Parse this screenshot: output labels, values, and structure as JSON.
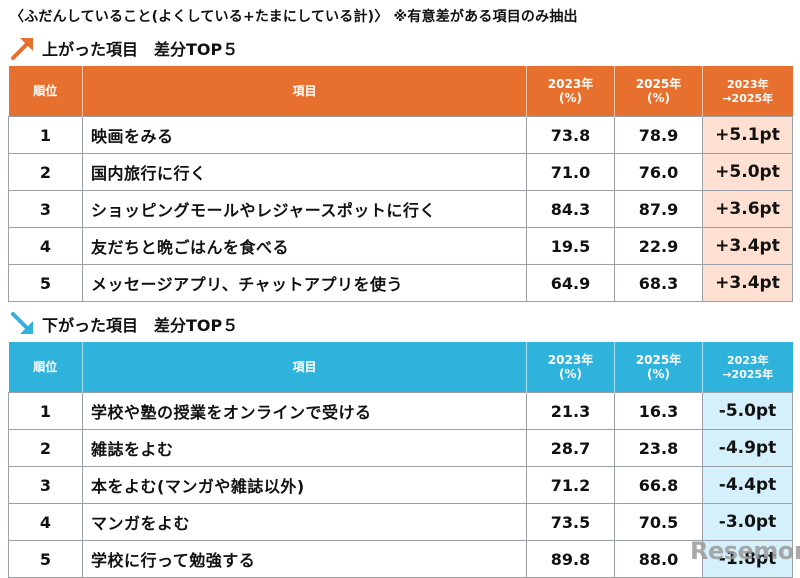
{
  "caption": "〈ふだんしていること(よくしている+たまにしている計)〉 ※有意差がある項目のみ抽出",
  "headers": {
    "rank": "順位",
    "item": "項目",
    "y2023": "2023年",
    "y2023_sub": "(%)",
    "y2025": "2025年",
    "y2025_sub": "(%)",
    "diff": "2023年",
    "diff_sub": "→2025年"
  },
  "up": {
    "title": "上がった項目　差分TOP５",
    "rows": [
      {
        "rank": "1",
        "item": "映画をみる",
        "y2023": "73.8",
        "y2025": "78.9",
        "diff": "+5.1pt"
      },
      {
        "rank": "2",
        "item": "国内旅行に行く",
        "y2023": "71.0",
        "y2025": "76.0",
        "diff": "+5.0pt"
      },
      {
        "rank": "3",
        "item": "ショッピングモールやレジャースポットに行く",
        "y2023": "84.3",
        "y2025": "87.9",
        "diff": "+3.6pt"
      },
      {
        "rank": "4",
        "item": "友だちと晩ごはんを食べる",
        "y2023": "19.5",
        "y2025": "22.9",
        "diff": "+3.4pt"
      },
      {
        "rank": "5",
        "item": "メッセージアプリ、チャットアプリを使う",
        "y2023": "64.9",
        "y2025": "68.3",
        "diff": "+3.4pt"
      }
    ]
  },
  "down": {
    "title": "下がった項目　差分TOP５",
    "rows": [
      {
        "rank": "1",
        "item": "学校や塾の授業をオンラインで受ける",
        "y2023": "21.3",
        "y2025": "16.3",
        "diff": "-5.0pt"
      },
      {
        "rank": "2",
        "item": "雑誌をよむ",
        "y2023": "28.7",
        "y2025": "23.8",
        "diff": "-4.9pt"
      },
      {
        "rank": "3",
        "item": "本をよむ(マンガや雑誌以外)",
        "y2023": "71.2",
        "y2025": "66.8",
        "diff": "-4.4pt"
      },
      {
        "rank": "4",
        "item": "マンガをよむ",
        "y2023": "73.5",
        "y2025": "70.5",
        "diff": "-3.0pt"
      },
      {
        "rank": "5",
        "item": "学校に行って勉強する",
        "y2023": "89.8",
        "y2025": "88.0",
        "diff": "-1.8pt"
      }
    ]
  },
  "colors": {
    "up_accent": "#e8702e",
    "down_accent": "#2fb3dc"
  },
  "icons": {
    "up": "arrow-up-right-icon",
    "down": "arrow-down-right-icon"
  },
  "watermark": "Resemom"
}
